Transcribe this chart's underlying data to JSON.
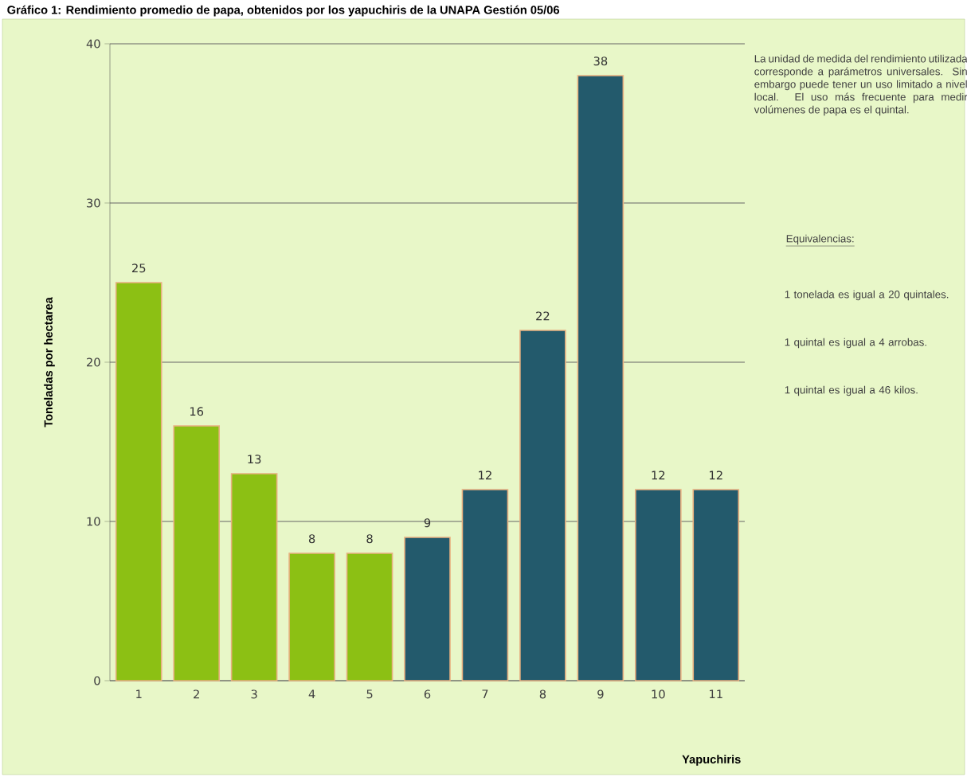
{
  "chart_data": {
    "type": "bar",
    "title": "Gráfico 1: Rendimiento promedio de papa, obtenidos por los yapuchiris de la UNAPA Gestión 05/06",
    "xlabel": "Yapuchiris",
    "ylabel": "Toneladas por hectarea",
    "categories": [
      "1",
      "2",
      "3",
      "4",
      "5",
      "6",
      "7",
      "8",
      "9",
      "10",
      "11"
    ],
    "values": [
      25,
      16,
      13,
      8,
      8,
      9,
      12,
      22,
      38,
      12,
      12
    ],
    "colors": [
      "#8cc014",
      "#8cc014",
      "#8cc014",
      "#8cc014",
      "#8cc014",
      "#235a6c",
      "#235a6c",
      "#235a6c",
      "#235a6c",
      "#235a6c",
      "#235a6c"
    ],
    "ylim": [
      0,
      40
    ],
    "yticks": [
      0,
      10,
      20,
      30,
      40
    ],
    "grid": "y",
    "data_labels": true,
    "annotations": [
      "La unidad de medida del rendimiento utilizada corresponde a parámetros universales. Sin embargo puede tener un uso limitado a nivel local. El uso más frecuente para medir volúmenes de papa es el quintal.",
      "Equivalencias:",
      "1 tonelada es igual a 20 quintales.",
      "1 quintal es igual a 4 arrobas.",
      "1 quintal es igual a 46 kilos."
    ]
  }
}
